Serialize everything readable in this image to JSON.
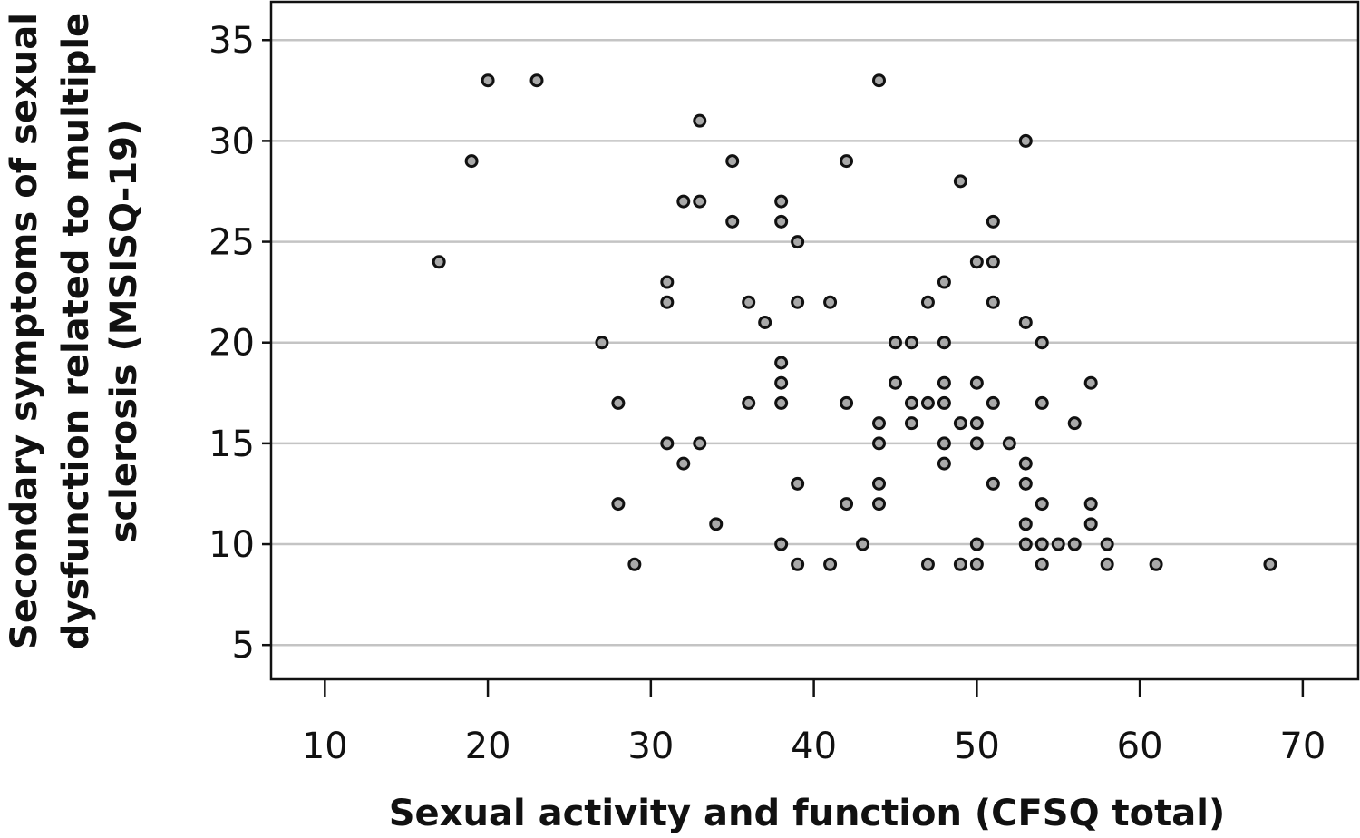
{
  "chart_data": {
    "type": "scatter",
    "xlabel": "Sexual activity and function (CFSQ total)",
    "ylabel_lines": [
      "Secondary symptoms of sexual",
      "dysfunction related to multiple",
      "sclerosis (MSISQ-19)"
    ],
    "xlim": [
      6.7,
      73.4
    ],
    "ylim": [
      3.3,
      36.9
    ],
    "x_ticks": [
      10,
      20,
      30,
      40,
      50,
      60,
      70
    ],
    "y_ticks": [
      5,
      10,
      15,
      20,
      25,
      30,
      35
    ],
    "x_tick_labels": [
      "10",
      "20",
      "30",
      "40",
      "50",
      "60",
      "70"
    ],
    "y_tick_labels": [
      "5",
      "10",
      "15",
      "20",
      "25",
      "30",
      "35"
    ],
    "grid": "horizontal",
    "marker_fill": "#a9a9a9",
    "marker_edge": "#111111",
    "points": [
      {
        "x": 17,
        "y": 24
      },
      {
        "x": 19,
        "y": 29
      },
      {
        "x": 20,
        "y": 33
      },
      {
        "x": 23,
        "y": 33
      },
      {
        "x": 27,
        "y": 20
      },
      {
        "x": 28,
        "y": 17
      },
      {
        "x": 28,
        "y": 12
      },
      {
        "x": 29,
        "y": 9
      },
      {
        "x": 31,
        "y": 23
      },
      {
        "x": 31,
        "y": 22
      },
      {
        "x": 31,
        "y": 15
      },
      {
        "x": 32,
        "y": 27
      },
      {
        "x": 32,
        "y": 14
      },
      {
        "x": 33,
        "y": 31
      },
      {
        "x": 33,
        "y": 27
      },
      {
        "x": 33,
        "y": 15
      },
      {
        "x": 34,
        "y": 11
      },
      {
        "x": 35,
        "y": 29
      },
      {
        "x": 35,
        "y": 26
      },
      {
        "x": 36,
        "y": 22
      },
      {
        "x": 36,
        "y": 17
      },
      {
        "x": 37,
        "y": 21
      },
      {
        "x": 38,
        "y": 27
      },
      {
        "x": 38,
        "y": 26
      },
      {
        "x": 38,
        "y": 19
      },
      {
        "x": 38,
        "y": 18
      },
      {
        "x": 38,
        "y": 17
      },
      {
        "x": 38,
        "y": 10
      },
      {
        "x": 39,
        "y": 25
      },
      {
        "x": 39,
        "y": 22
      },
      {
        "x": 39,
        "y": 13
      },
      {
        "x": 39,
        "y": 9
      },
      {
        "x": 41,
        "y": 22
      },
      {
        "x": 41,
        "y": 9
      },
      {
        "x": 42,
        "y": 29
      },
      {
        "x": 42,
        "y": 17
      },
      {
        "x": 42,
        "y": 12
      },
      {
        "x": 43,
        "y": 10
      },
      {
        "x": 44,
        "y": 33
      },
      {
        "x": 44,
        "y": 16
      },
      {
        "x": 44,
        "y": 15
      },
      {
        "x": 44,
        "y": 13
      },
      {
        "x": 44,
        "y": 12
      },
      {
        "x": 45,
        "y": 20
      },
      {
        "x": 45,
        "y": 18
      },
      {
        "x": 46,
        "y": 20
      },
      {
        "x": 46,
        "y": 17
      },
      {
        "x": 46,
        "y": 16
      },
      {
        "x": 47,
        "y": 22
      },
      {
        "x": 47,
        "y": 17
      },
      {
        "x": 47,
        "y": 9
      },
      {
        "x": 48,
        "y": 23
      },
      {
        "x": 48,
        "y": 20
      },
      {
        "x": 48,
        "y": 18
      },
      {
        "x": 48,
        "y": 17
      },
      {
        "x": 48,
        "y": 15
      },
      {
        "x": 48,
        "y": 14
      },
      {
        "x": 49,
        "y": 28
      },
      {
        "x": 49,
        "y": 16
      },
      {
        "x": 49,
        "y": 9
      },
      {
        "x": 50,
        "y": 24
      },
      {
        "x": 50,
        "y": 18
      },
      {
        "x": 50,
        "y": 16
      },
      {
        "x": 50,
        "y": 15
      },
      {
        "x": 50,
        "y": 10
      },
      {
        "x": 50,
        "y": 9
      },
      {
        "x": 51,
        "y": 26
      },
      {
        "x": 51,
        "y": 24
      },
      {
        "x": 51,
        "y": 22
      },
      {
        "x": 51,
        "y": 17
      },
      {
        "x": 51,
        "y": 13
      },
      {
        "x": 52,
        "y": 15
      },
      {
        "x": 53,
        "y": 30
      },
      {
        "x": 53,
        "y": 21
      },
      {
        "x": 53,
        "y": 14
      },
      {
        "x": 53,
        "y": 13
      },
      {
        "x": 53,
        "y": 11
      },
      {
        "x": 53,
        "y": 10
      },
      {
        "x": 54,
        "y": 20
      },
      {
        "x": 54,
        "y": 17
      },
      {
        "x": 54,
        "y": 12
      },
      {
        "x": 54,
        "y": 10
      },
      {
        "x": 54,
        "y": 9
      },
      {
        "x": 55,
        "y": 10
      },
      {
        "x": 56,
        "y": 16
      },
      {
        "x": 56,
        "y": 10
      },
      {
        "x": 57,
        "y": 18
      },
      {
        "x": 57,
        "y": 12
      },
      {
        "x": 57,
        "y": 11
      },
      {
        "x": 58,
        "y": 10
      },
      {
        "x": 58,
        "y": 9
      },
      {
        "x": 61,
        "y": 9
      },
      {
        "x": 68,
        "y": 9
      }
    ]
  }
}
